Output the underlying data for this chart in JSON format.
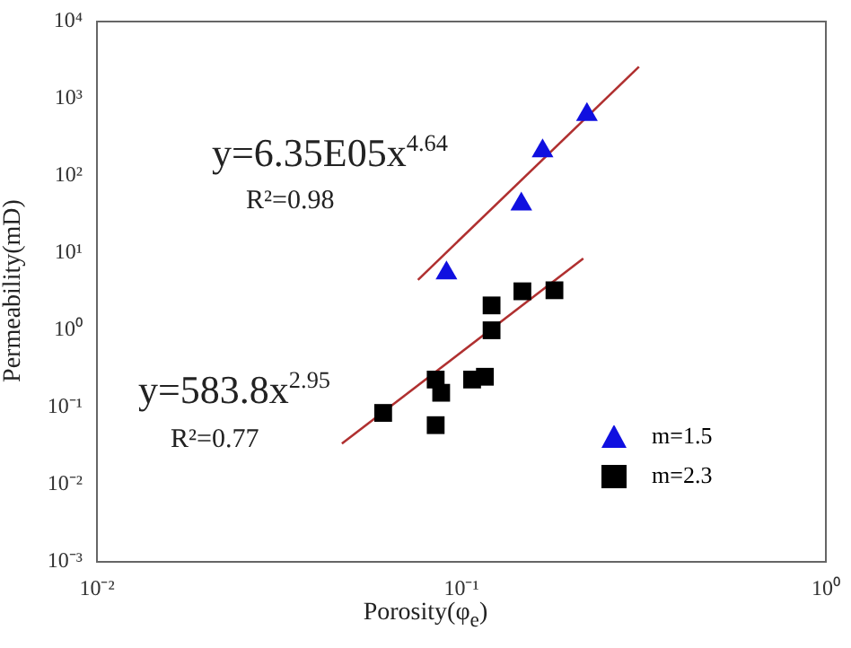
{
  "chart_data": {
    "type": "scatter",
    "xlabel": "Porosity(φ$_{e}$)",
    "ylabel": "Permeability(mD)",
    "log": "xy",
    "grid": false,
    "legend": "bottom right",
    "xlim": [
      0.01,
      1
    ],
    "xticks": [
      {
        "value": 0.01,
        "label": "10⁻²"
      },
      {
        "value": 0.1,
        "label": "10⁻¹"
      },
      {
        "value": 1,
        "label": "10⁰"
      }
    ],
    "ylim": [
      0.001,
      10000
    ],
    "yticks": [
      {
        "value": 0.001,
        "label": "10⁻³"
      },
      {
        "value": 0.01,
        "label": "10⁻²"
      },
      {
        "value": 0.1,
        "label": "10⁻¹"
      },
      {
        "value": 1,
        "label": "10⁰"
      },
      {
        "value": 10,
        "label": "10¹"
      },
      {
        "value": 100,
        "label": "10²"
      },
      {
        "value": 1000,
        "label": "10³"
      },
      {
        "value": 10000,
        "label": "10⁴"
      }
    ],
    "series": [
      {
        "name": "m=1.5",
        "color": "#1010e0",
        "marker": "triangle",
        "x": [
          0.091,
          0.146,
          0.167,
          0.221
        ],
        "values": [
          5.5,
          43,
          210,
          620
        ]
      },
      {
        "name": "m=2.3",
        "color": "#000000",
        "marker": "square",
        "x": [
          0.061,
          0.085,
          0.088,
          0.085,
          0.107,
          0.116,
          0.121,
          0.121,
          0.147,
          0.18
        ],
        "values": [
          0.085,
          0.23,
          0.155,
          0.059,
          0.23,
          0.25,
          1.0,
          2.1,
          3.2,
          3.3
        ]
      },
      {
        "type": "line",
        "color": "#b03030",
        "marker": "none",
        "x": [
          0.076,
          0.307
        ],
        "values": [
          4.5,
          2600
        ]
      },
      {
        "type": "line",
        "color": "#b03030",
        "marker": "none",
        "x": [
          0.047,
          0.216
        ],
        "values": [
          0.034,
          8.5
        ]
      }
    ],
    "annotations": [
      "y=6.35E05x$^{4.64}$",
      "R²=0.98",
      "y=583.8x$^{2.95}$",
      "R²=0.77"
    ]
  }
}
